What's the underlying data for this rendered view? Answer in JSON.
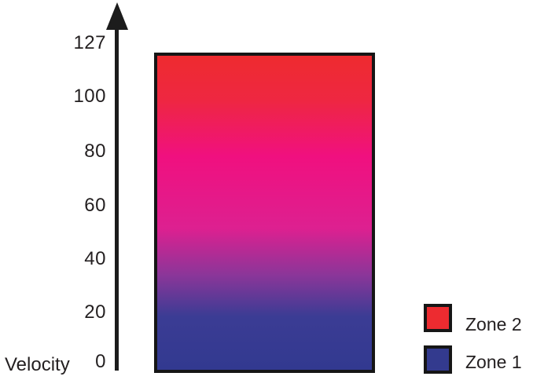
{
  "figure": {
    "axis": {
      "label": "Velocity",
      "ticks": [
        "127",
        "100",
        "80",
        "60",
        "40",
        "20",
        "0"
      ]
    },
    "legend": {
      "items": [
        {
          "label": "Zone 2",
          "color": "#ED2B30"
        },
        {
          "label": "Zone 1",
          "color": "#333A8E"
        }
      ]
    }
  },
  "chart_data": {
    "type": "area",
    "ylabel": "Velocity",
    "yticks": [
      127,
      100,
      80,
      60,
      40,
      20,
      0
    ],
    "ylim": [
      0,
      127
    ],
    "grid": false,
    "legend_position": "bottom-right",
    "series": [
      {
        "name": "Zone 2",
        "color": "#ED2B30",
        "position": "top",
        "velocity_at_full_level": 127
      },
      {
        "name": "Zone 1",
        "color": "#333A8E",
        "position": "bottom",
        "velocity_at_full_level": 0
      }
    ],
    "description": "Single column spanning velocity 0-127 with a vertical crossfade: Zone 2 (red) dominates at high velocity, Zone 1 (blue) at low velocity.",
    "gradient_stops": [
      {
        "offset": 0.0,
        "color": "#EE2B2F"
      },
      {
        "offset": 0.14,
        "color": "#EE2741"
      },
      {
        "offset": 0.32,
        "color": "#F0107F"
      },
      {
        "offset": 0.55,
        "color": "#DD2090"
      },
      {
        "offset": 0.7,
        "color": "#8A3699"
      },
      {
        "offset": 0.83,
        "color": "#3B3C94"
      },
      {
        "offset": 1.0,
        "color": "#323990"
      }
    ]
  }
}
